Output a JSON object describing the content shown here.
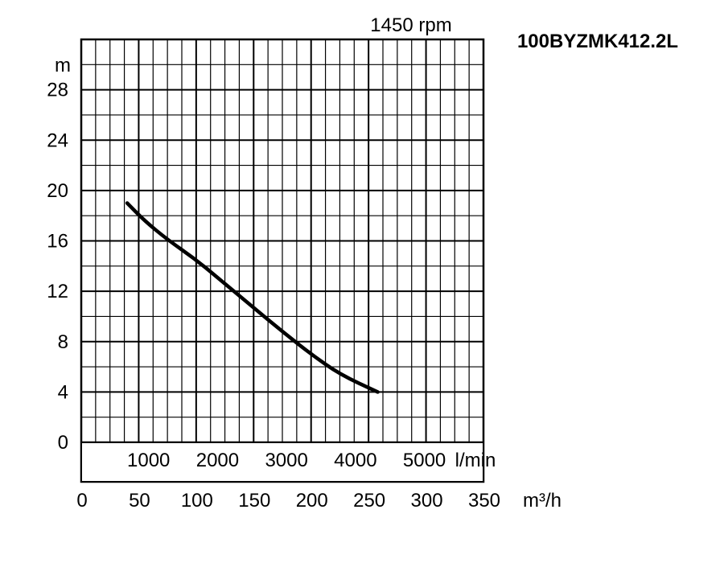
{
  "chart_data": {
    "type": "line",
    "title": "100BYZMK412.2L",
    "subtitle": "1450 rpm",
    "ylabel": "m",
    "xlabel": "m³/h",
    "x2label": "l/min",
    "ylim": [
      0,
      32
    ],
    "xlim": [
      0,
      350
    ],
    "yticks": [
      "0",
      "4",
      "8",
      "12",
      "16",
      "20",
      "24",
      "28"
    ],
    "xticks": [
      "0",
      "50",
      "100",
      "150",
      "200",
      "250",
      "300",
      "350"
    ],
    "x2ticks": [
      "1000",
      "2000",
      "3000",
      "4000",
      "5000"
    ],
    "x2_unit_label": "l/min",
    "grid": true,
    "series": [
      {
        "x": [
          40,
          55,
          75,
          100,
          125,
          150,
          175,
          200,
          225,
          258
        ],
        "values": [
          19,
          17.6,
          16.1,
          14.5,
          12.6,
          10.7,
          8.8,
          7.0,
          5.4,
          4.0
        ]
      }
    ]
  }
}
